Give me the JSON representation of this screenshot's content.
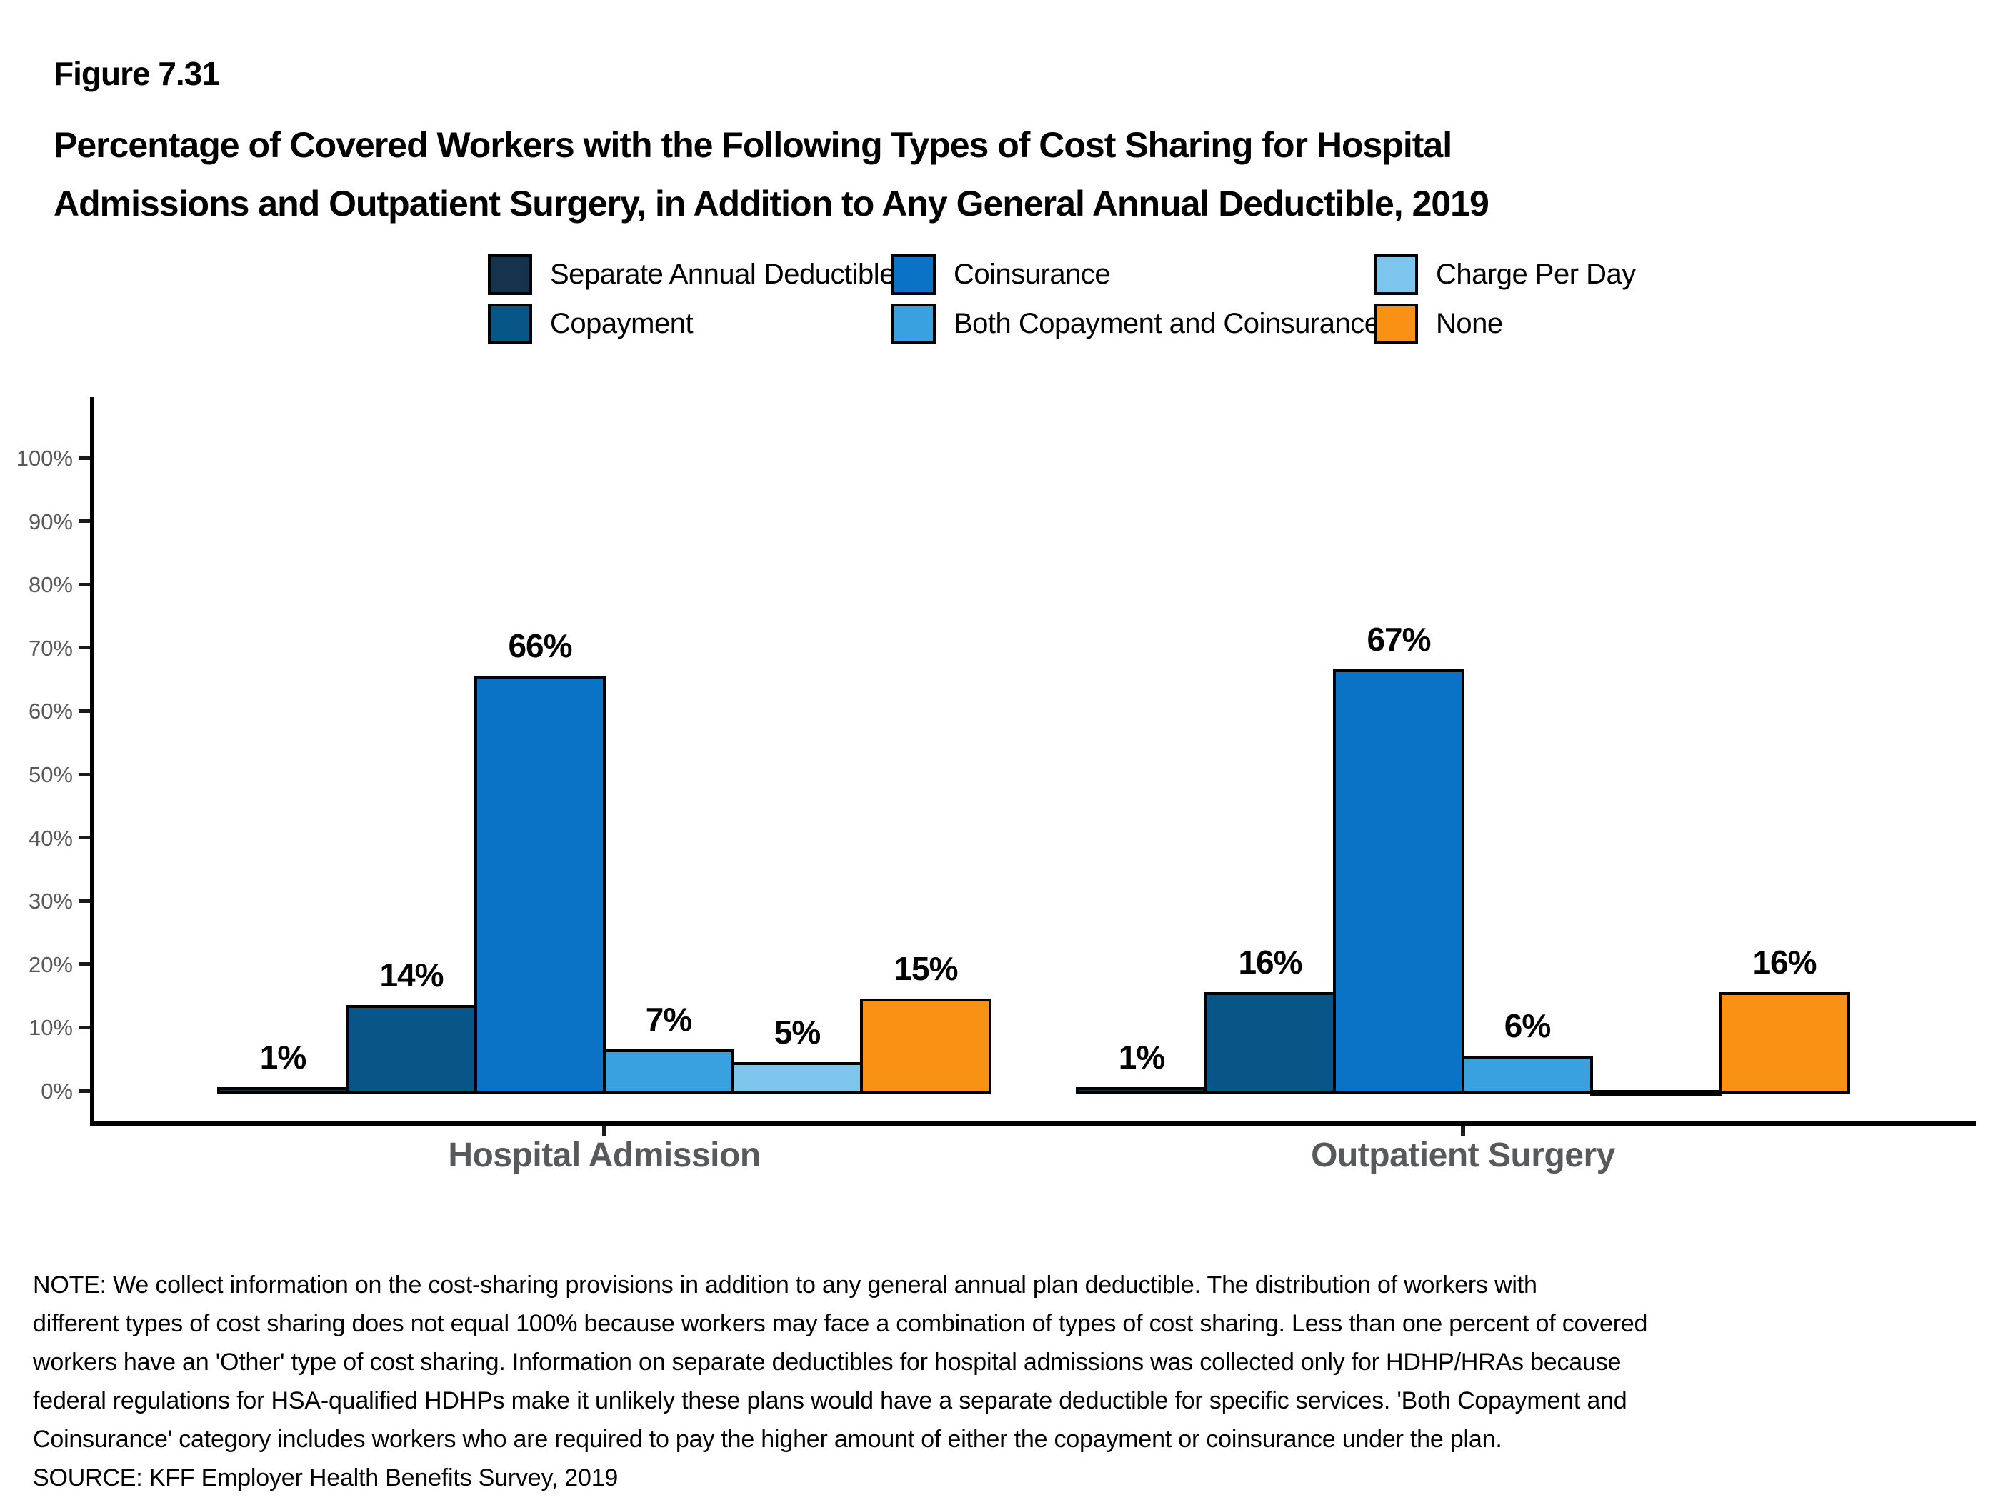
{
  "figure": {
    "label": "Figure 7.31",
    "title_line1": "Percentage of Covered Workers with the Following Types of Cost Sharing for Hospital",
    "title_line2": "Admissions and Outpatient Surgery, in Addition to Any General Annual Deductible, 2019"
  },
  "legend": {
    "columns": [
      {
        "items": [
          {
            "label": "Separate Annual Deductible",
            "color": "#16334E"
          },
          {
            "label": "Copayment",
            "color": "#075687"
          }
        ]
      },
      {
        "items": [
          {
            "label": "Coinsurance",
            "color": "#0A73C5"
          },
          {
            "label": "Both Copayment and Coinsurance",
            "color": "#3AA1E0"
          }
        ]
      },
      {
        "items": [
          {
            "label": "Charge Per Day",
            "color": "#7EC5EE"
          },
          {
            "label": "None",
            "color": "#F89114"
          }
        ]
      }
    ]
  },
  "chart_data": {
    "type": "bar",
    "title": "Percentage of Covered Workers with the Following Types of Cost Sharing for Hospital Admissions and Outpatient Surgery, in Addition to Any General Annual Deductible, 2019",
    "categories": [
      "Hospital Admission",
      "Outpatient Surgery"
    ],
    "series": [
      {
        "name": "Separate Annual Deductible",
        "color": "#16334E",
        "values": [
          1,
          1
        ]
      },
      {
        "name": "Copayment",
        "color": "#075687",
        "values": [
          14,
          16
        ]
      },
      {
        "name": "Coinsurance",
        "color": "#0A73C5",
        "values": [
          66,
          67
        ]
      },
      {
        "name": "Both Copayment and Coinsurance",
        "color": "#3AA1E0",
        "values": [
          7,
          6
        ]
      },
      {
        "name": "Charge Per Day",
        "color": "#7EC5EE",
        "values": [
          5,
          0
        ]
      },
      {
        "name": "None",
        "color": "#F89114",
        "values": [
          15,
          16
        ]
      }
    ],
    "value_labels": [
      [
        "1%",
        "14%",
        "66%",
        "7%",
        "5%",
        "15%"
      ],
      [
        "1%",
        "16%",
        "67%",
        "6%",
        "",
        "16%"
      ]
    ],
    "xlabel": "",
    "ylabel": "",
    "ylim": [
      0,
      100
    ],
    "y_ticks": [
      "0%",
      "10%",
      "20%",
      "30%",
      "40%",
      "50%",
      "60%",
      "70%",
      "80%",
      "90%",
      "100%"
    ],
    "grid": false,
    "legend_position": "top",
    "bar_outline_color": "#000000"
  },
  "note": {
    "lines": [
      "NOTE: We collect information on the cost-sharing provisions in addition to any general annual plan deductible. The distribution of workers with",
      "different types of cost sharing does not equal 100% because workers may face a combination of types of cost sharing. Less than one percent of covered",
      "workers have an 'Other' type of cost sharing. Information on separate deductibles for hospital admissions was collected only for HDHP/HRAs because",
      "federal regulations for HSA-qualified HDHPs make it unlikely these plans would have a separate deductible for specific services. 'Both Copayment and",
      "Coinsurance' category includes workers who are required to pay the higher amount of either the copayment or coinsurance under the plan."
    ]
  },
  "source": "SOURCE: KFF Employer Health Benefits Survey, 2019"
}
